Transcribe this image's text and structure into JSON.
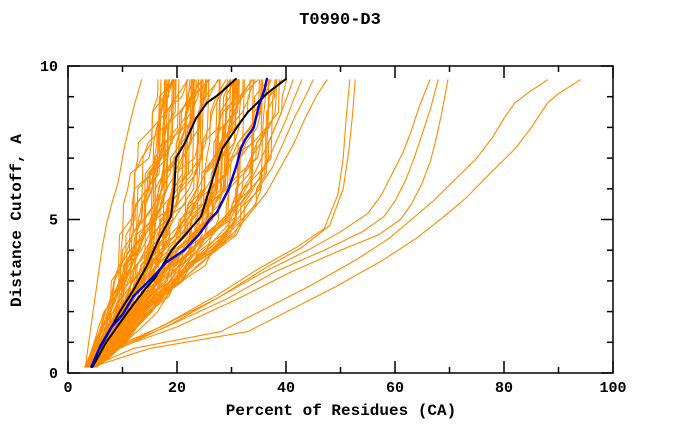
{
  "chart_data": {
    "type": "line",
    "title": "T0990-D3",
    "xlabel": "Percent of Residues (CA)",
    "ylabel": "Distance Cutoff, A",
    "xlim": [
      0,
      100
    ],
    "ylim": [
      0,
      10
    ],
    "x_ticks_major": [
      0,
      20,
      40,
      60,
      80,
      100
    ],
    "x_ticks_minor": [
      10,
      30,
      50,
      70,
      90
    ],
    "y_ticks_major": [
      0,
      5,
      10
    ],
    "y_ticks_minor": [
      1,
      2,
      3,
      4,
      6,
      7,
      8,
      9
    ],
    "grid": false,
    "legend": "none",
    "colors": {
      "ensemble": "#ff8c00",
      "highlight_black": "#000000",
      "highlight_blue": "#0000dd",
      "frame": "#000000",
      "background": "#ffffff"
    },
    "ensemble": {
      "description": "dense bundle of server model curves (percent of CA residues within distance cutoff)",
      "count": 88,
      "cutoffs": [
        0.2,
        0.5,
        1,
        1.5,
        2,
        2.5,
        3,
        3.5,
        4,
        4.5,
        5,
        5.5,
        6,
        6.5,
        7,
        7.5,
        8,
        8.5,
        9,
        9.55
      ],
      "lower": [
        3.2,
        4.0,
        5.2,
        6.4,
        7.4,
        8.2,
        8.9,
        9.6,
        10.2,
        10.8,
        11.4,
        12.0,
        12.6,
        13.2,
        13.8,
        14.3,
        14.8,
        15.3,
        15.8,
        16.3
      ],
      "upper": [
        5.3,
        7.5,
        10.5,
        13.0,
        15.5,
        18.5,
        21.5,
        24.5,
        27.0,
        29.5,
        31.5,
        33.0,
        34.2,
        34.9,
        35.6,
        36.3,
        37.0,
        37.6,
        38.2,
        38.9
      ]
    },
    "outliers": [
      {
        "name": "left-outlier",
        "points": [
          [
            3.2,
            0.2
          ],
          [
            3.8,
            1.0
          ],
          [
            4.6,
            2.0
          ],
          [
            5.4,
            3.0
          ],
          [
            6.2,
            4.0
          ],
          [
            7.0,
            4.8
          ],
          [
            8.0,
            5.5
          ],
          [
            9.2,
            6.2
          ],
          [
            10.3,
            7.3
          ],
          [
            11.3,
            8.1
          ],
          [
            12.3,
            8.8
          ],
          [
            13.5,
            9.55
          ]
        ]
      },
      {
        "name": "outlier-41",
        "points": [
          [
            3.9,
            0.2
          ],
          [
            6.0,
            0.8
          ],
          [
            10,
            1.6
          ],
          [
            15,
            2.5
          ],
          [
            20,
            3.4
          ],
          [
            25,
            4.2
          ],
          [
            29,
            5.0
          ],
          [
            32,
            5.8
          ],
          [
            34.5,
            6.6
          ],
          [
            36.5,
            7.4
          ],
          [
            38.5,
            8.2
          ],
          [
            40,
            8.9
          ],
          [
            41.3,
            9.55
          ]
        ]
      },
      {
        "name": "outlier-43",
        "points": [
          [
            3.9,
            0.2
          ],
          [
            6.3,
            0.85
          ],
          [
            11,
            1.65
          ],
          [
            16.5,
            2.55
          ],
          [
            21.5,
            3.45
          ],
          [
            26.5,
            4.25
          ],
          [
            30.5,
            5.05
          ],
          [
            33.5,
            5.85
          ],
          [
            36,
            6.65
          ],
          [
            38,
            7.45
          ],
          [
            40,
            8.25
          ],
          [
            41.5,
            8.95
          ],
          [
            42.9,
            9.55
          ]
        ]
      },
      {
        "name": "outlier-45",
        "points": [
          [
            4.0,
            0.2
          ],
          [
            6.4,
            0.9
          ],
          [
            11.5,
            1.7
          ],
          [
            17,
            2.6
          ],
          [
            22.5,
            3.5
          ],
          [
            27.5,
            4.3
          ],
          [
            31.5,
            5.1
          ],
          [
            34.5,
            5.9
          ],
          [
            37.5,
            6.7
          ],
          [
            39.5,
            7.5
          ],
          [
            41.5,
            8.3
          ],
          [
            43.5,
            9.0
          ],
          [
            45.0,
            9.55
          ]
        ]
      },
      {
        "name": "outlier-47",
        "points": [
          [
            4.0,
            0.2
          ],
          [
            6.5,
            0.9
          ],
          [
            12,
            1.7
          ],
          [
            18,
            2.6
          ],
          [
            24,
            3.5
          ],
          [
            29,
            4.3
          ],
          [
            33,
            5.1
          ],
          [
            36.5,
            5.9
          ],
          [
            39,
            6.7
          ],
          [
            41.5,
            7.5
          ],
          [
            43.5,
            8.3
          ],
          [
            45.5,
            9.0
          ],
          [
            47.5,
            9.55
          ]
        ]
      },
      {
        "name": "outlier-52",
        "points": [
          [
            4.0,
            0.2
          ],
          [
            9.0,
            0.8
          ],
          [
            18,
            1.6
          ],
          [
            27,
            2.5
          ],
          [
            35,
            3.4
          ],
          [
            42,
            4.1
          ],
          [
            47,
            4.7
          ],
          [
            49.5,
            5.8
          ],
          [
            50.5,
            7.0
          ],
          [
            51,
            8.2
          ],
          [
            51.7,
            9.55
          ]
        ]
      },
      {
        "name": "outlier-53",
        "points": [
          [
            4.1,
            0.2
          ],
          [
            9.5,
            0.8
          ],
          [
            19,
            1.6
          ],
          [
            28,
            2.5
          ],
          [
            36,
            3.4
          ],
          [
            43,
            4.1
          ],
          [
            48,
            4.8
          ],
          [
            50.5,
            6.0
          ],
          [
            51.5,
            7.2
          ],
          [
            52.2,
            8.4
          ],
          [
            52.7,
            9.55
          ]
        ]
      },
      {
        "name": "outlier-66",
        "points": [
          [
            4.0,
            0.2
          ],
          [
            8.0,
            0.8
          ],
          [
            17,
            1.5
          ],
          [
            27,
            2.4
          ],
          [
            36,
            3.3
          ],
          [
            44,
            4.0
          ],
          [
            50,
            4.6
          ],
          [
            55,
            5.2
          ],
          [
            57.5,
            5.8
          ],
          [
            59.5,
            6.5
          ],
          [
            61.5,
            7.2
          ],
          [
            63,
            7.9
          ],
          [
            64.5,
            8.7
          ],
          [
            66.4,
            9.55
          ]
        ]
      },
      {
        "name": "outlier-68",
        "points": [
          [
            4.1,
            0.2
          ],
          [
            8.5,
            0.8
          ],
          [
            18,
            1.5
          ],
          [
            29,
            2.4
          ],
          [
            38,
            3.3
          ],
          [
            47,
            4.0
          ],
          [
            54,
            4.6
          ],
          [
            58,
            5.1
          ],
          [
            60,
            5.6
          ],
          [
            62,
            6.3
          ],
          [
            63.5,
            7.0
          ],
          [
            65,
            7.8
          ],
          [
            66.5,
            8.6
          ],
          [
            67.9,
            9.55
          ]
        ]
      },
      {
        "name": "outlier-70",
        "points": [
          [
            4.2,
            0.2
          ],
          [
            9.0,
            0.8
          ],
          [
            20,
            1.5
          ],
          [
            31,
            2.4
          ],
          [
            41,
            3.3
          ],
          [
            50,
            4.0
          ],
          [
            57,
            4.5
          ],
          [
            61,
            5.0
          ],
          [
            63,
            5.5
          ],
          [
            65,
            6.2
          ],
          [
            66.5,
            6.9
          ],
          [
            67.5,
            7.6
          ],
          [
            68.5,
            8.4
          ],
          [
            69.7,
            9.55
          ]
        ]
      },
      {
        "name": "outlier-88",
        "points": [
          [
            4.3,
            0.2
          ],
          [
            12,
            0.8
          ],
          [
            28,
            1.35
          ],
          [
            44,
            2.8
          ],
          [
            53,
            3.7
          ],
          [
            59,
            4.4
          ],
          [
            63,
            5.0
          ],
          [
            67,
            5.6
          ],
          [
            71,
            6.3
          ],
          [
            75,
            7.0
          ],
          [
            78,
            7.7
          ],
          [
            80,
            8.3
          ],
          [
            82,
            8.8
          ],
          [
            85,
            9.2
          ],
          [
            88,
            9.55
          ]
        ]
      },
      {
        "name": "outlier-94",
        "points": [
          [
            4.5,
            0.2
          ],
          [
            15,
            0.8
          ],
          [
            33,
            1.35
          ],
          [
            49,
            2.8
          ],
          [
            58,
            3.7
          ],
          [
            64,
            4.4
          ],
          [
            69,
            5.1
          ],
          [
            73,
            5.7
          ],
          [
            78,
            6.6
          ],
          [
            82,
            7.3
          ],
          [
            85,
            8.0
          ],
          [
            88,
            8.8
          ],
          [
            90,
            9.1
          ],
          [
            94,
            9.55
          ]
        ]
      }
    ],
    "highlights": [
      {
        "name": "reference-curve-1",
        "color": "#000000",
        "width": 2,
        "points": [
          [
            4.3,
            0.2
          ],
          [
            5.5,
            0.7
          ],
          [
            6.5,
            1.0
          ],
          [
            9.5,
            2.0
          ],
          [
            12,
            2.7
          ],
          [
            14.5,
            3.5
          ],
          [
            16.5,
            4.3
          ],
          [
            18.9,
            5.1
          ],
          [
            19.5,
            6.0
          ],
          [
            19.8,
            7.0
          ],
          [
            21.3,
            7.45
          ],
          [
            23.5,
            8.3
          ],
          [
            25.5,
            8.8
          ],
          [
            27.7,
            9.08
          ],
          [
            30.8,
            9.58
          ]
        ]
      },
      {
        "name": "reference-curve-2",
        "color": "#000000",
        "width": 2,
        "points": [
          [
            4.5,
            0.2
          ],
          [
            7.0,
            1.0
          ],
          [
            11,
            2.0
          ],
          [
            14,
            2.7
          ],
          [
            16,
            3.1
          ],
          [
            19,
            4.0
          ],
          [
            22,
            4.6
          ],
          [
            24.4,
            5.1
          ],
          [
            26,
            6.0
          ],
          [
            27,
            6.6
          ],
          [
            28.3,
            7.3
          ],
          [
            31,
            8.0
          ],
          [
            33,
            8.5
          ],
          [
            36.5,
            9.1
          ],
          [
            40,
            9.58
          ]
        ]
      },
      {
        "name": "selected-model-curve",
        "color": "#0000dd",
        "width": 2.4,
        "points": [
          [
            4.3,
            0.2
          ],
          [
            6.0,
            0.9
          ],
          [
            8.0,
            1.5
          ],
          [
            10,
            1.9
          ],
          [
            12,
            2.5
          ],
          [
            14,
            2.85
          ],
          [
            15.2,
            3.05
          ],
          [
            18,
            3.6
          ],
          [
            21.3,
            4.0
          ],
          [
            24,
            4.5
          ],
          [
            26,
            5.0
          ],
          [
            27.3,
            5.23
          ],
          [
            29.5,
            6.0
          ],
          [
            31,
            6.8
          ],
          [
            31.7,
            7.3
          ],
          [
            32.5,
            7.6
          ],
          [
            34.1,
            8.0
          ],
          [
            35,
            8.7
          ],
          [
            36,
            9.2
          ],
          [
            36.5,
            9.58
          ]
        ]
      }
    ]
  }
}
